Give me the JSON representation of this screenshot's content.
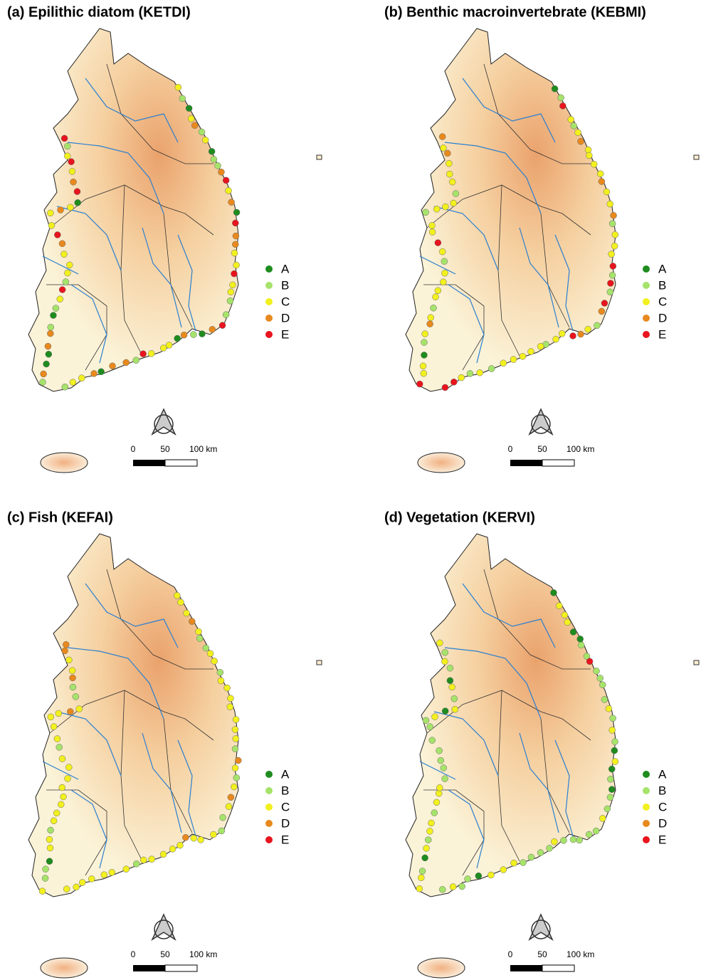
{
  "panels": [
    {
      "title": "(a) Epilithic diatom (KETDI)"
    },
    {
      "title": "(b) Benthic macroinvertebrate (KEBMI)"
    },
    {
      "title": "(c) Fish (KEFAI)"
    },
    {
      "title": "(d) Vegetation (KERVI)"
    }
  ],
  "legend": {
    "items": [
      {
        "label": "A",
        "color": "#1e8c1e"
      },
      {
        "label": "B",
        "color": "#a6e36a"
      },
      {
        "label": "C",
        "color": "#f2f01e"
      },
      {
        "label": "D",
        "color": "#e8891e"
      },
      {
        "label": "E",
        "color": "#e8141e"
      }
    ]
  },
  "scale_bar": {
    "labels": [
      "0",
      "50",
      "100 km"
    ]
  }
}
